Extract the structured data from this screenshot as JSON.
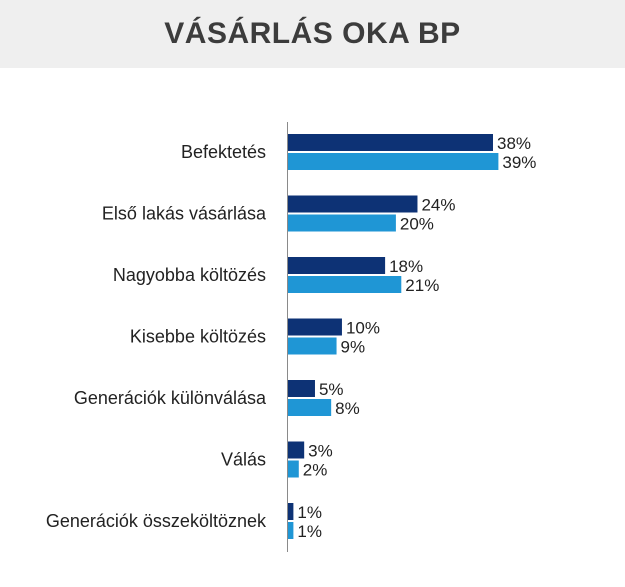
{
  "chart_data": {
    "type": "bar",
    "orientation": "horizontal",
    "title": "VÁSÁRLÁS OKA BP",
    "categories": [
      "Befektetés",
      "Első lakás vásárlása",
      "Nagyobba költözés",
      "Kisebbe költözés",
      "Generációk különválása",
      "Válás",
      "Generációk összeköltöznek"
    ],
    "series": [
      {
        "color": "#0d3275",
        "values": [
          38,
          24,
          18,
          10,
          5,
          3,
          1
        ],
        "labels": [
          "38%",
          "24%",
          "18%",
          "10%",
          "5%",
          "3%",
          "1%"
        ]
      },
      {
        "color": "#1f96d5",
        "values": [
          39,
          20,
          21,
          9,
          8,
          2,
          1
        ],
        "labels": [
          "39%",
          "20%",
          "21%",
          "9%",
          "8%",
          "2%",
          "1%"
        ]
      }
    ],
    "xlim": [
      0,
      40
    ],
    "grid": false,
    "legend": "none"
  }
}
